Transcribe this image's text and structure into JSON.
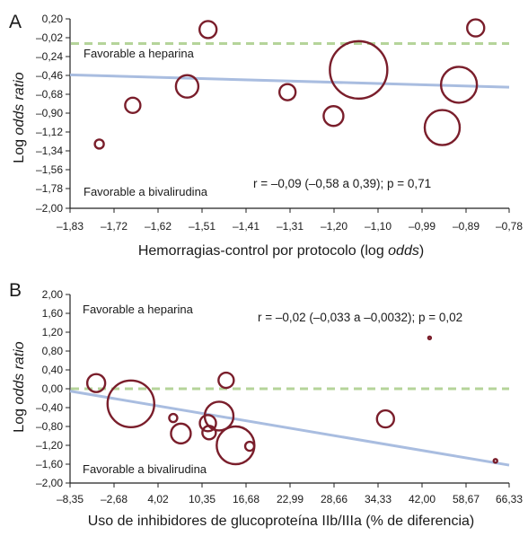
{
  "colors": {
    "bubble": "#7a1e2b",
    "regression": "#a9bde0",
    "reference": "#b5d49a",
    "axis": "#222222"
  },
  "chart_data": [
    {
      "type": "scatter",
      "panel": "A",
      "ylabel_prefix": "Log ",
      "ylabel_italic": "odds ratio",
      "xlabel_prefix": "Hemorragias-control por protocolo (log ",
      "xlabel_italic": "odds",
      "xlabel_suffix": ")",
      "x_ticks": [
        "–1,83",
        "–1,72",
        "–1,62",
        "–1,51",
        "–1,41",
        "–1,31",
        "–1,20",
        "–1,10",
        "–0,99",
        "–0,89",
        "–0,78"
      ],
      "y_ticks": [
        "0,20",
        "–0,02",
        "–0,24",
        "–0,46",
        "–0,68",
        "–0,90",
        "–1,12",
        "–1,34",
        "–1,56",
        "–1,78",
        "–2,00"
      ],
      "xlim": [
        -1.83,
        -0.78
      ],
      "ylim": [
        -2.0,
        0.3
      ],
      "note_top": "Favorable a heparina",
      "note_bottom": "Favorable a bivalirudina",
      "stat": "r = –0,09 (–0,58 a 0,39); p = 0,71",
      "reference_y": 0.0,
      "regression": {
        "x": [
          -1.83,
          -0.78
        ],
        "y": [
          -0.38,
          -0.53
        ]
      },
      "points": [
        {
          "x": -1.76,
          "y": -1.22,
          "size": 10
        },
        {
          "x": -1.68,
          "y": -0.75,
          "size": 17
        },
        {
          "x": -1.55,
          "y": -0.52,
          "size": 25
        },
        {
          "x": -1.5,
          "y": 0.17,
          "size": 19
        },
        {
          "x": -1.31,
          "y": -0.59,
          "size": 18
        },
        {
          "x": -1.2,
          "y": -0.88,
          "size": 22
        },
        {
          "x": -1.14,
          "y": -0.32,
          "size": 64
        },
        {
          "x": -0.94,
          "y": -1.02,
          "size": 39
        },
        {
          "x": -0.9,
          "y": -0.5,
          "size": 40
        },
        {
          "x": -0.86,
          "y": 0.19,
          "size": 19
        }
      ]
    },
    {
      "type": "scatter",
      "panel": "B",
      "ylabel_prefix": "Log ",
      "ylabel_italic": "odds ratio",
      "xlabel_prefix": "Uso de inhibidores de glucoproteína IIb/IIIa (% de diferencia)",
      "xlabel_italic": "",
      "xlabel_suffix": "",
      "x_ticks": [
        "–8,35",
        "–2,68",
        "4,02",
        "10,35",
        "16,68",
        "22,99",
        "28,66",
        "34,33",
        "42,00",
        "58,67",
        "66,33"
      ],
      "y_ticks": [
        "2,00",
        "1,60",
        "1,20",
        "0,80",
        "0,40",
        "0,00",
        "–0,40",
        "–0,80",
        "–1,20",
        "–1,60",
        "–2,00"
      ],
      "xlim": [
        -8.35,
        66.33
      ],
      "ylim": [
        -2.0,
        2.0
      ],
      "note_top": "Favorable a heparina",
      "note_bottom": "Favorable a bivalirudina",
      "stat": "r = –0,02 (–0,033 a –0,0032); p = 0,02",
      "reference_y": 0.0,
      "regression": {
        "x": [
          -8.35,
          66.33
        ],
        "y": [
          -0.05,
          -1.62
        ]
      },
      "points": [
        {
          "x": -3.9,
          "y": 0.12,
          "size": 20
        },
        {
          "x": 2.0,
          "y": -0.32,
          "size": 52
        },
        {
          "x": 9.2,
          "y": -0.62,
          "size": 9
        },
        {
          "x": 10.5,
          "y": -0.95,
          "size": 22
        },
        {
          "x": 15.1,
          "y": -0.73,
          "size": 18
        },
        {
          "x": 15.3,
          "y": -0.93,
          "size": 15
        },
        {
          "x": 17.0,
          "y": -0.58,
          "size": 32
        },
        {
          "x": 18.2,
          "y": 0.18,
          "size": 17
        },
        {
          "x": 19.8,
          "y": -1.2,
          "size": 42
        },
        {
          "x": 22.2,
          "y": -1.22,
          "size": 10
        },
        {
          "x": 45.3,
          "y": -0.64,
          "size": 19
        },
        {
          "x": 52.8,
          "y": 1.08,
          "size": 3
        },
        {
          "x": 64.0,
          "y": -1.53,
          "size": 4
        }
      ]
    }
  ]
}
